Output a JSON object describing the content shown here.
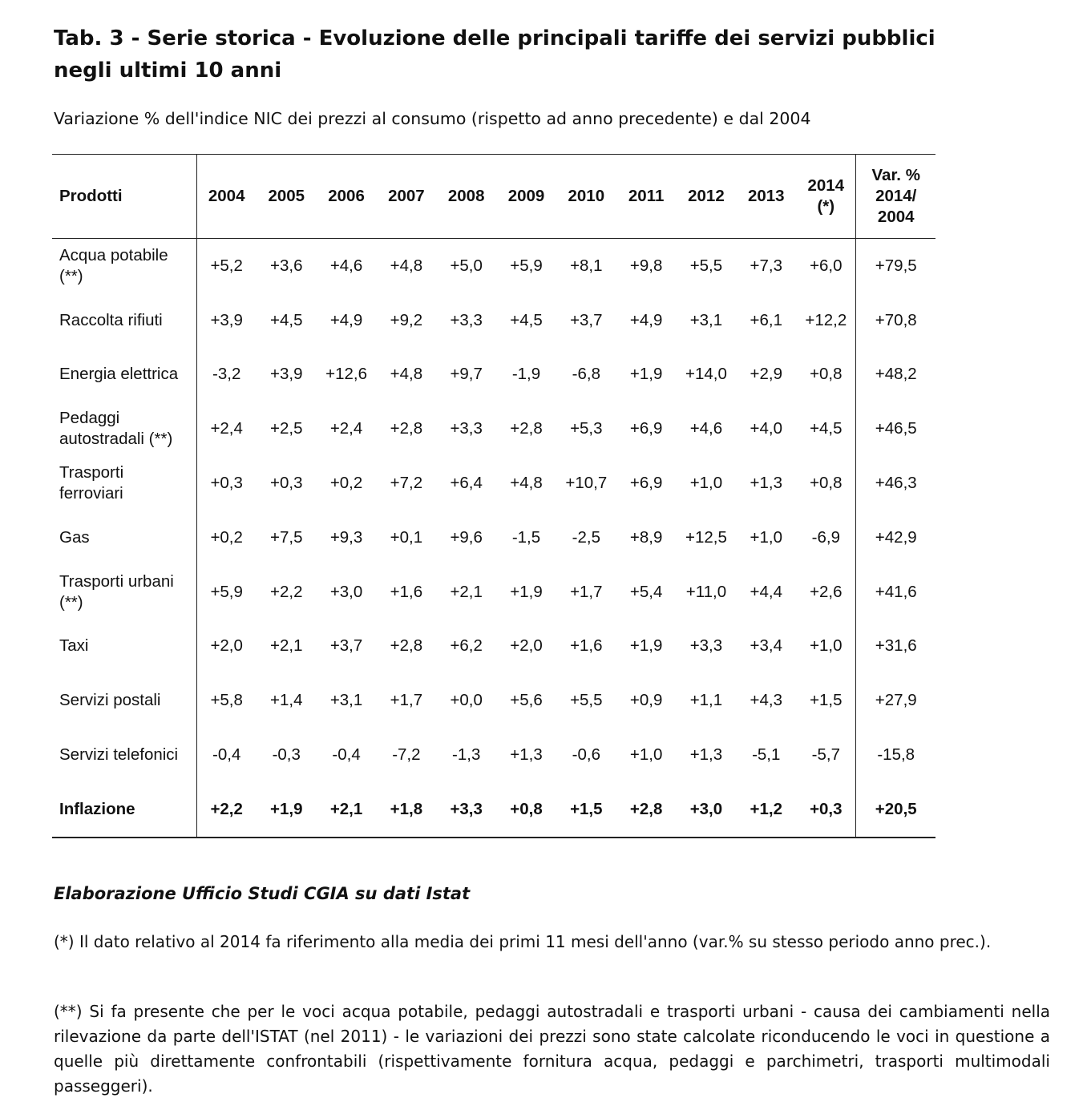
{
  "title": "Tab. 3 - Serie storica - Evoluzione delle principali tariffe dei servizi pubblici\nnegli ultimi 10 anni",
  "subtitle": "Variazione % dell'indice NIC dei prezzi al consumo (rispetto ad anno precedente) e dal 2004",
  "table": {
    "header": [
      "Prodotti",
      "2004",
      "2005",
      "2006",
      "2007",
      "2008",
      "2009",
      "2010",
      "2011",
      "2012",
      "2013",
      "2014\n(*)",
      "Var. %\n2014/\n2004"
    ],
    "rows": [
      [
        "Acqua potabile\n(**)",
        "+5,2",
        "+3,6",
        "+4,6",
        "+4,8",
        "+5,0",
        "+5,9",
        "+8,1",
        "+9,8",
        "+5,5",
        "+7,3",
        "+6,0",
        "+79,5"
      ],
      [
        "Raccolta rifiuti",
        "+3,9",
        "+4,5",
        "+4,9",
        "+9,2",
        "+3,3",
        "+4,5",
        "+3,7",
        "+4,9",
        "+3,1",
        "+6,1",
        "+12,2",
        "+70,8"
      ],
      [
        "Energia elettrica",
        "-3,2",
        "+3,9",
        "+12,6",
        "+4,8",
        "+9,7",
        "-1,9",
        "-6,8",
        "+1,9",
        "+14,0",
        "+2,9",
        "+0,8",
        "+48,2"
      ],
      [
        "Pedaggi\nautostradali (**)",
        "+2,4",
        "+2,5",
        "+2,4",
        "+2,8",
        "+3,3",
        "+2,8",
        "+5,3",
        "+6,9",
        "+4,6",
        "+4,0",
        "+4,5",
        "+46,5"
      ],
      [
        "Trasporti\nferroviari",
        "+0,3",
        "+0,3",
        "+0,2",
        "+7,2",
        "+6,4",
        "+4,8",
        "+10,7",
        "+6,9",
        "+1,0",
        "+1,3",
        "+0,8",
        "+46,3"
      ],
      [
        "Gas",
        "+0,2",
        "+7,5",
        "+9,3",
        "+0,1",
        "+9,6",
        "-1,5",
        "-2,5",
        "+8,9",
        "+12,5",
        "+1,0",
        "-6,9",
        "+42,9"
      ],
      [
        "Trasporti urbani\n(**)",
        "+5,9",
        "+2,2",
        "+3,0",
        "+1,6",
        "+2,1",
        "+1,9",
        "+1,7",
        "+5,4",
        "+11,0",
        "+4,4",
        "+2,6",
        "+41,6"
      ],
      [
        "Taxi",
        "+2,0",
        "+2,1",
        "+3,7",
        "+2,8",
        "+6,2",
        "+2,0",
        "+1,6",
        "+1,9",
        "+3,3",
        "+3,4",
        "+1,0",
        "+31,6"
      ],
      [
        "Servizi postali",
        "+5,8",
        "+1,4",
        "+3,1",
        "+1,7",
        "+0,0",
        "+5,6",
        "+5,5",
        "+0,9",
        "+1,1",
        "+4,3",
        "+1,5",
        "+27,9"
      ],
      [
        "Servizi telefonici",
        "-0,4",
        "-0,3",
        "-0,4",
        "-7,2",
        "-1,3",
        "+1,3",
        "-0,6",
        "+1,0",
        "+1,3",
        "-5,1",
        "-5,7",
        "-15,8"
      ],
      [
        "Inflazione",
        "+2,2",
        "+1,9",
        "+2,1",
        "+1,8",
        "+3,3",
        "+0,8",
        "+1,5",
        "+2,8",
        "+3,0",
        "+1,2",
        "+0,3",
        "+20,5"
      ]
    ]
  },
  "source": "Elaborazione Ufficio Studi CGIA su dati Istat",
  "notes": [
    "(*) Il dato relativo al 2014 fa riferimento alla media dei primi 11 mesi dell'anno (var.% su stesso periodo anno prec.).",
    "(**) Si fa presente che per le voci acqua potabile, pedaggi autostradali e trasporti urbani - causa dei cambiamenti nella rilevazione da parte dell'ISTAT (nel 2011) - le variazioni dei prezzi sono state calcolate riconducendo le voci in questione a quelle più direttamente confrontabili (rispettivamente fornitura acqua, pedaggi e parchimetri, trasporti multimodali passeggeri)."
  ]
}
